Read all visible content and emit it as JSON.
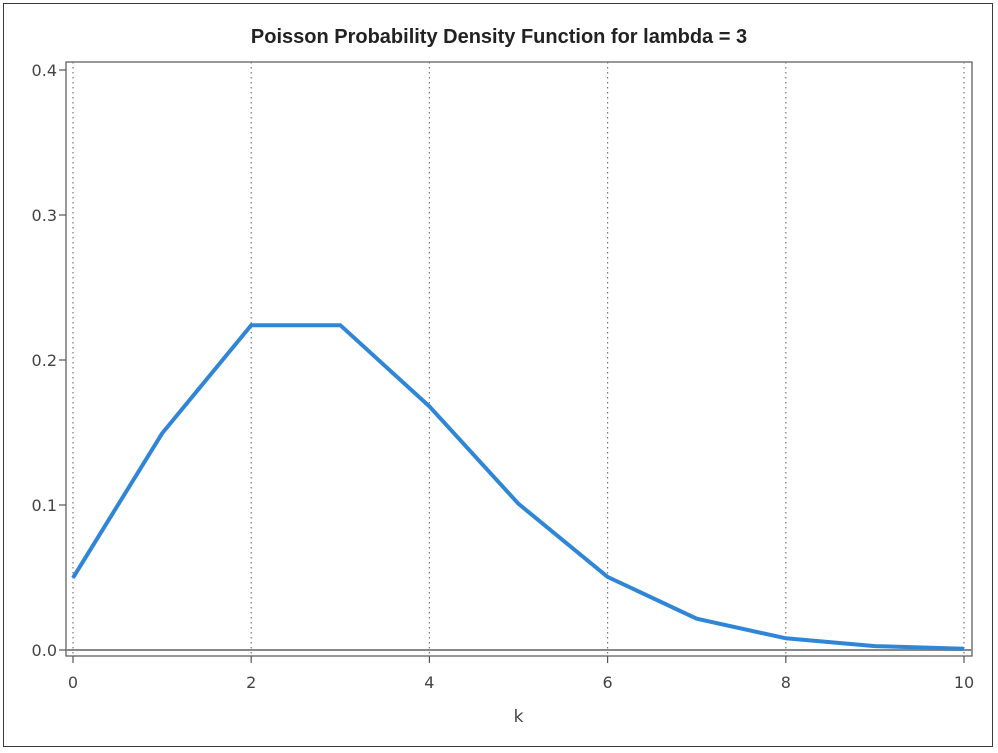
{
  "chart_data": {
    "type": "line",
    "title": "Poisson Probability Density Function for lambda = 3",
    "xlabel": "k",
    "ylabel": "",
    "xlim": [
      0,
      10
    ],
    "ylim": [
      0,
      0.4
    ],
    "xticks": [
      "0",
      "2",
      "4",
      "6",
      "8",
      "10"
    ],
    "yticks": [
      "0.0",
      "0.1",
      "0.2",
      "0.3",
      "0.4"
    ],
    "grid": "vertical dotted",
    "series": [
      {
        "color": "#2f86d6",
        "x": [
          0,
          1,
          2,
          3,
          4,
          5,
          6,
          7,
          8,
          9,
          10
        ],
        "y": [
          0.0498,
          0.1494,
          0.224,
          0.224,
          0.168,
          0.1008,
          0.0504,
          0.0216,
          0.0081,
          0.0027,
          0.0008
        ]
      }
    ]
  }
}
